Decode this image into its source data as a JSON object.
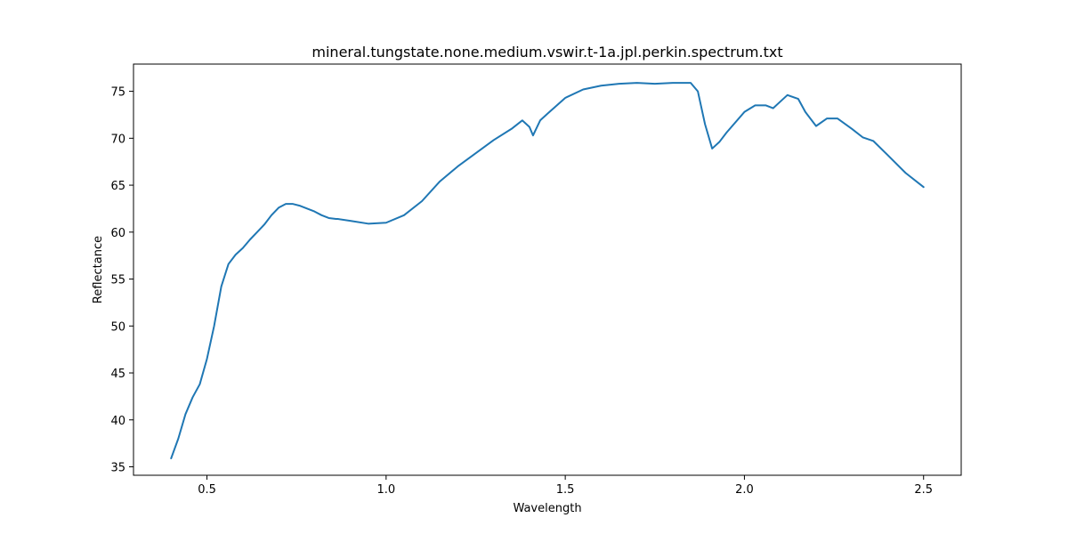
{
  "chart_data": {
    "type": "line",
    "title": "mineral.tungstate.none.medium.vswir.t-1a.jpl.perkin.spectrum.txt",
    "xlabel": "Wavelength",
    "ylabel": "Reflectance",
    "xlim": [
      0.295,
      2.605
    ],
    "ylim": [
      34.1,
      77.9
    ],
    "xticks": [
      0.5,
      1.0,
      1.5,
      2.0,
      2.5
    ],
    "xtick_labels": [
      "0.5",
      "1.0",
      "1.5",
      "2.0",
      "2.5"
    ],
    "yticks": [
      35,
      40,
      45,
      50,
      55,
      60,
      65,
      70,
      75
    ],
    "ytick_labels": [
      "35",
      "40",
      "45",
      "50",
      "55",
      "60",
      "65",
      "70",
      "75"
    ],
    "grid": false,
    "line_color": "#1f77b4",
    "series": [
      {
        "x": [
          0.4,
          0.42,
          0.44,
          0.46,
          0.48,
          0.5,
          0.52,
          0.54,
          0.56,
          0.58,
          0.6,
          0.62,
          0.64,
          0.66,
          0.68,
          0.7,
          0.72,
          0.74,
          0.76,
          0.78,
          0.8,
          0.82,
          0.84,
          0.86,
          0.865,
          0.9,
          0.95,
          1.0,
          1.05,
          1.1,
          1.15,
          1.2,
          1.25,
          1.3,
          1.35,
          1.38,
          1.4,
          1.41,
          1.43,
          1.45,
          1.5,
          1.55,
          1.6,
          1.65,
          1.7,
          1.75,
          1.8,
          1.85,
          1.87,
          1.89,
          1.91,
          1.93,
          1.95,
          2.0,
          2.03,
          2.06,
          2.08,
          2.1,
          2.12,
          2.15,
          2.17,
          2.2,
          2.23,
          2.26,
          2.3,
          2.33,
          2.36,
          2.4,
          2.45,
          2.5
        ],
        "y": [
          35.9,
          38.0,
          40.6,
          42.4,
          43.8,
          46.5,
          50.0,
          54.2,
          56.6,
          57.6,
          58.3,
          59.2,
          60.0,
          60.8,
          61.8,
          62.6,
          63.0,
          63.0,
          62.8,
          62.5,
          62.2,
          61.8,
          61.5,
          61.4,
          61.4,
          61.2,
          60.9,
          61.0,
          61.8,
          63.3,
          65.4,
          67.0,
          68.4,
          69.8,
          71.0,
          71.9,
          71.2,
          70.3,
          71.9,
          72.6,
          74.3,
          75.2,
          75.6,
          75.8,
          75.9,
          75.8,
          75.9,
          75.9,
          75.0,
          71.5,
          68.9,
          69.6,
          70.6,
          72.8,
          73.5,
          73.5,
          73.2,
          73.9,
          74.6,
          74.2,
          72.8,
          71.3,
          72.1,
          72.1,
          71.0,
          70.1,
          69.7,
          68.2,
          66.3,
          64.8
        ]
      }
    ]
  }
}
